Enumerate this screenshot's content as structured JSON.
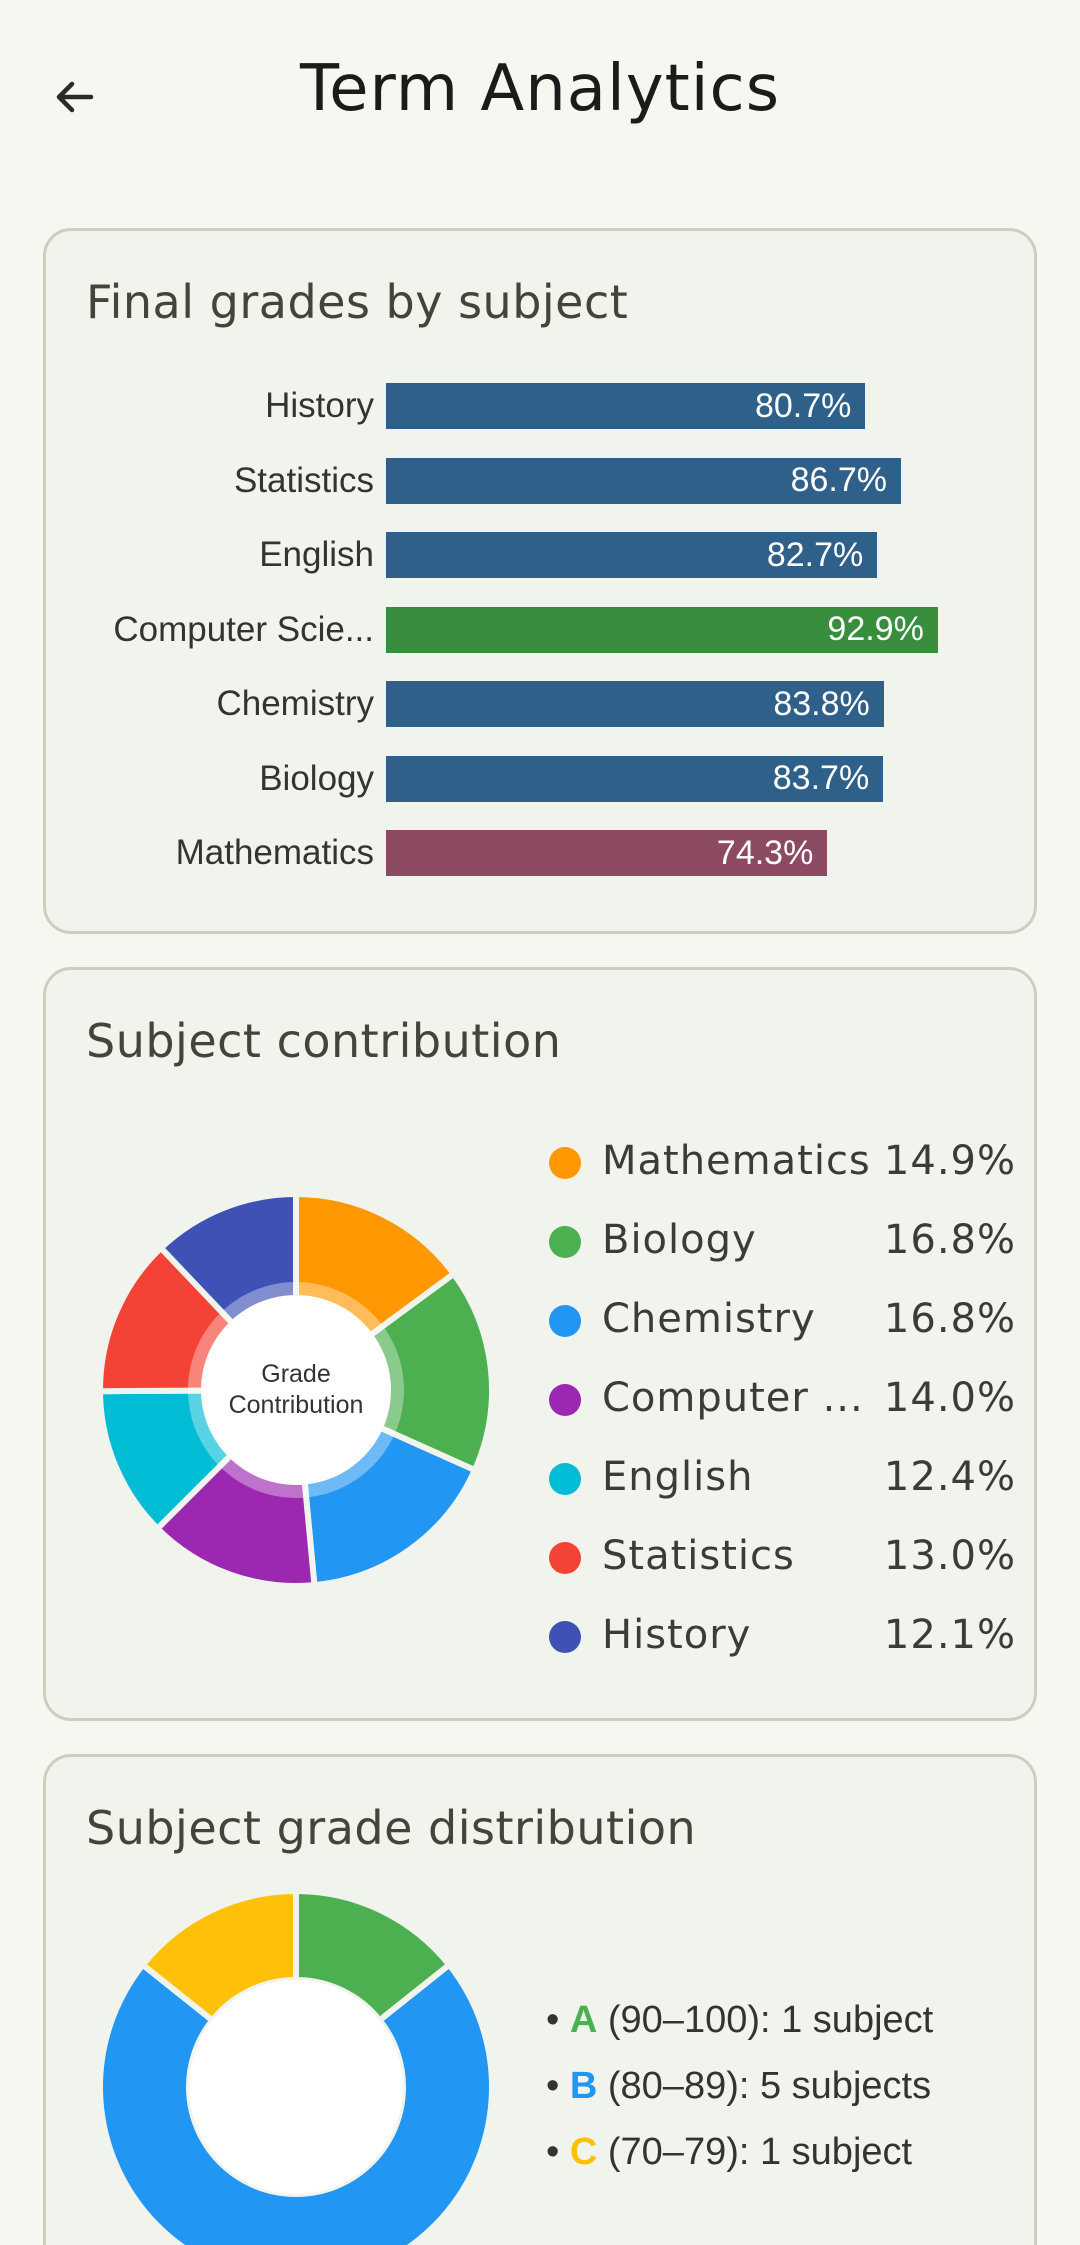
{
  "header": {
    "title": "Term Analytics",
    "back_icon": "arrow-left-icon"
  },
  "grades_card": {
    "title": "Final grades by subject",
    "chart_data": {
      "type": "bar",
      "orientation": "horizontal",
      "categories": [
        "History",
        "Statistics",
        "English",
        "Computer Scie...",
        "Chemistry",
        "Biology",
        "Mathematics"
      ],
      "values": [
        80.7,
        86.7,
        82.7,
        92.9,
        83.8,
        83.7,
        74.3
      ],
      "value_labels": [
        "80.7%",
        "86.7%",
        "82.7%",
        "92.9%",
        "83.8%",
        "83.7%",
        "74.3%"
      ],
      "colors": [
        "#2e6089",
        "#2e6089",
        "#2e6089",
        "#388e3c",
        "#2e6089",
        "#2e6089",
        "#8c4a62"
      ],
      "xlim": [
        0,
        100
      ],
      "grid": false
    }
  },
  "contribution_card": {
    "title": "Subject contribution",
    "center_label_line1": "Grade",
    "center_label_line2": "Contribution",
    "chart_data": {
      "type": "pie",
      "donut": true,
      "categories": [
        "Mathematics",
        "Biology",
        "Chemistry",
        "Computer ...",
        "English",
        "Statistics",
        "History"
      ],
      "values": [
        14.9,
        16.8,
        16.8,
        14.0,
        12.4,
        13.0,
        12.1
      ],
      "value_labels": [
        "14.9%",
        "16.8%",
        "16.8%",
        "14.0%",
        "12.4%",
        "13.0%",
        "12.1%"
      ],
      "colors": [
        "#ff9800",
        "#4caf50",
        "#2196f3",
        "#9c27b0",
        "#00bcd4",
        "#f44336",
        "#3f51b5"
      ],
      "legend": "right"
    }
  },
  "distribution_card": {
    "title": "Subject grade distribution",
    "chart_data": {
      "type": "pie",
      "donut": true,
      "categories": [
        "A",
        "B",
        "C"
      ],
      "values": [
        1,
        5,
        1
      ],
      "colors": [
        "#4caf50",
        "#2196f3",
        "#ffc107"
      ],
      "legend": "right"
    },
    "items": [
      {
        "bullet": "•",
        "letter": "A",
        "text": "(90–100): 1 subject",
        "color": "#4caf50"
      },
      {
        "bullet": "•",
        "letter": "B",
        "text": "(80–89): 5 subjects",
        "color": "#2196f3"
      },
      {
        "bullet": "•",
        "letter": "C",
        "text": "(70–79): 1 subject",
        "color": "#ffc107"
      }
    ]
  }
}
